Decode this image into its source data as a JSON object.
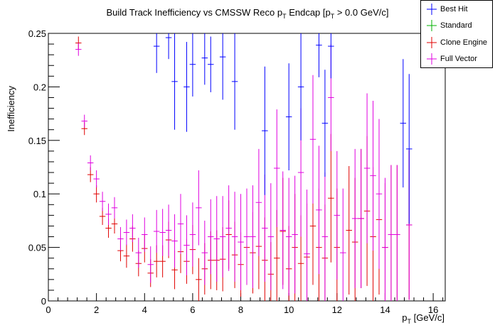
{
  "chart_data": {
    "type": "scatter",
    "title_parts": [
      "Build Track Inefficiency vs CMSSW Reco p",
      "T",
      " Endcap [p",
      "T",
      " > 0.0 GeV/c]"
    ],
    "xlabel_parts": [
      "p",
      "T",
      " [GeV/c]"
    ],
    "ylabel": "Inefficiency",
    "xlim": [
      0,
      16.5
    ],
    "ylim": [
      0,
      0.25
    ],
    "x_ticks": [
      "0",
      "2",
      "4",
      "6",
      "8",
      "10",
      "12",
      "14",
      "16"
    ],
    "y_ticks": [
      "0",
      "0.05",
      "0.1",
      "0.15",
      "0.2",
      "0.25"
    ],
    "bin_half_width": 0.125,
    "legend_placement": "top-right",
    "series": [
      {
        "name": "Best Hit",
        "color": "#0000ff",
        "points": [
          [
            4.5,
            0.238,
            0.025
          ],
          [
            5.0,
            0.246,
            0.02
          ],
          [
            5.25,
            0.205,
            0.045
          ],
          [
            5.75,
            0.2,
            0.042
          ],
          [
            6.0,
            0.221,
            0.03
          ],
          [
            6.5,
            0.227,
            0.025
          ],
          [
            6.75,
            0.221,
            0.026
          ],
          [
            7.25,
            0.228,
            0.04
          ],
          [
            7.75,
            0.205,
            0.045
          ],
          [
            9.0,
            0.159,
            0.06
          ],
          [
            10.0,
            0.172,
            0.05
          ],
          [
            10.5,
            0.2,
            0.05
          ],
          [
            11.25,
            0.239,
            0.03
          ],
          [
            11.5,
            0.166,
            0.05
          ],
          [
            11.75,
            0.238,
            0.03
          ],
          [
            14.75,
            0.166,
            0.06
          ],
          [
            15.0,
            0.142,
            0.07
          ]
        ]
      },
      {
        "name": "Standard",
        "color": "#00b000",
        "points": []
      },
      {
        "name": "Clone Engine",
        "color": "#e00000",
        "points": [
          [
            1.25,
            0.241,
            0.006
          ],
          [
            1.5,
            0.161,
            0.006
          ],
          [
            1.75,
            0.118,
            0.007
          ],
          [
            2.0,
            0.1,
            0.008
          ],
          [
            2.25,
            0.079,
            0.008
          ],
          [
            2.5,
            0.068,
            0.009
          ],
          [
            2.75,
            0.072,
            0.009
          ],
          [
            3.0,
            0.047,
            0.01
          ],
          [
            3.25,
            0.042,
            0.011
          ],
          [
            3.5,
            0.058,
            0.012
          ],
          [
            3.75,
            0.035,
            0.012
          ],
          [
            4.0,
            0.049,
            0.013
          ],
          [
            4.25,
            0.026,
            0.013
          ],
          [
            4.5,
            0.037,
            0.015
          ],
          [
            4.75,
            0.037,
            0.015
          ],
          [
            5.0,
            0.057,
            0.017
          ],
          [
            5.25,
            0.029,
            0.018
          ],
          [
            5.5,
            0.046,
            0.02
          ],
          [
            5.75,
            0.037,
            0.021
          ],
          [
            6.0,
            0.048,
            0.023
          ],
          [
            6.25,
            0.02,
            0.02
          ],
          [
            6.5,
            0.03,
            0.024
          ],
          [
            6.75,
            0.038,
            0.027
          ],
          [
            7.0,
            0.038,
            0.028
          ],
          [
            7.25,
            0.039,
            0.03
          ],
          [
            7.5,
            0.062,
            0.032
          ],
          [
            7.75,
            0.043,
            0.031
          ],
          [
            8.0,
            0.034,
            0.03
          ],
          [
            8.25,
            0.05,
            0.035
          ],
          [
            8.5,
            0.045,
            0.038
          ],
          [
            8.75,
            0.051,
            0.04
          ],
          [
            9.0,
            0.038,
            0.04
          ],
          [
            9.25,
            0.025,
            0.03
          ],
          [
            9.5,
            0.04,
            0.045
          ],
          [
            9.75,
            0.065,
            0.05
          ],
          [
            10.0,
            0.03,
            0.04
          ],
          [
            10.25,
            0.05,
            0.05
          ],
          [
            10.5,
            0.035,
            0.045
          ],
          [
            10.75,
            0.041,
            0.05
          ],
          [
            11.0,
            0.07,
            0.055
          ],
          [
            11.25,
            0.05,
            0.055
          ],
          [
            11.5,
            0.04,
            0.05
          ],
          [
            11.75,
            0.096,
            0.06
          ],
          [
            12.0,
            0.05,
            0.055
          ],
          [
            12.5,
            0.066,
            0.06
          ],
          [
            12.75,
            0.055,
            0.06
          ],
          [
            13.0,
            0.077,
            0.065
          ],
          [
            13.25,
            0.084,
            0.07
          ],
          [
            13.5,
            0.06,
            0.065
          ],
          [
            13.75,
            0.076,
            0.07
          ],
          [
            14.0,
            0.05,
            0.06
          ],
          [
            14.25,
            0.062,
            0.065
          ],
          [
            14.5,
            0.062,
            0.065
          ],
          [
            15.0,
            0.071,
            0.07
          ]
        ]
      },
      {
        "name": "Full Vector",
        "color": "#e000e0",
        "points": [
          [
            1.25,
            0.235,
            0.006
          ],
          [
            1.5,
            0.168,
            0.006
          ],
          [
            1.75,
            0.129,
            0.007
          ],
          [
            2.0,
            0.114,
            0.008
          ],
          [
            2.25,
            0.093,
            0.009
          ],
          [
            2.5,
            0.081,
            0.01
          ],
          [
            2.75,
            0.087,
            0.01
          ],
          [
            3.0,
            0.058,
            0.011
          ],
          [
            3.25,
            0.064,
            0.012
          ],
          [
            3.5,
            0.068,
            0.013
          ],
          [
            3.75,
            0.045,
            0.014
          ],
          [
            4.0,
            0.062,
            0.016
          ],
          [
            4.25,
            0.034,
            0.017
          ],
          [
            4.5,
            0.065,
            0.02
          ],
          [
            4.75,
            0.064,
            0.022
          ],
          [
            5.0,
            0.066,
            0.024
          ],
          [
            5.25,
            0.056,
            0.025
          ],
          [
            5.5,
            0.072,
            0.028
          ],
          [
            5.75,
            0.052,
            0.028
          ],
          [
            6.0,
            0.062,
            0.03
          ],
          [
            6.25,
            0.087,
            0.035
          ],
          [
            6.5,
            0.045,
            0.03
          ],
          [
            6.75,
            0.06,
            0.035
          ],
          [
            7.0,
            0.058,
            0.04
          ],
          [
            7.25,
            0.06,
            0.038
          ],
          [
            7.5,
            0.068,
            0.04
          ],
          [
            7.75,
            0.06,
            0.042
          ],
          [
            8.0,
            0.055,
            0.045
          ],
          [
            8.25,
            0.06,
            0.045
          ],
          [
            8.5,
            0.06,
            0.048
          ],
          [
            8.75,
            0.092,
            0.05
          ],
          [
            9.0,
            0.068,
            0.05
          ],
          [
            9.25,
            0.06,
            0.05
          ],
          [
            9.5,
            0.124,
            0.055
          ],
          [
            9.75,
            0.066,
            0.055
          ],
          [
            10.0,
            0.06,
            0.055
          ],
          [
            10.25,
            0.062,
            0.055
          ],
          [
            10.5,
            0.12,
            0.06
          ],
          [
            10.75,
            0.044,
            0.06
          ],
          [
            11.0,
            0.151,
            0.06
          ],
          [
            11.25,
            0.085,
            0.06
          ],
          [
            11.5,
            0.06,
            0.06
          ],
          [
            11.75,
            0.19,
            0.05
          ],
          [
            12.0,
            0.08,
            0.06
          ],
          [
            12.25,
            0.045,
            0.06
          ],
          [
            12.75,
            0.077,
            0.065
          ],
          [
            13.0,
            0.077,
            0.065
          ],
          [
            13.25,
            0.124,
            0.07
          ],
          [
            13.5,
            0.117,
            0.07
          ],
          [
            13.75,
            0.1,
            0.07
          ],
          [
            14.0,
            0.05,
            0.065
          ],
          [
            14.25,
            0.062,
            0.065
          ],
          [
            14.5,
            0.062,
            0.065
          ],
          [
            15.0,
            0.071,
            0.07
          ]
        ]
      }
    ]
  }
}
